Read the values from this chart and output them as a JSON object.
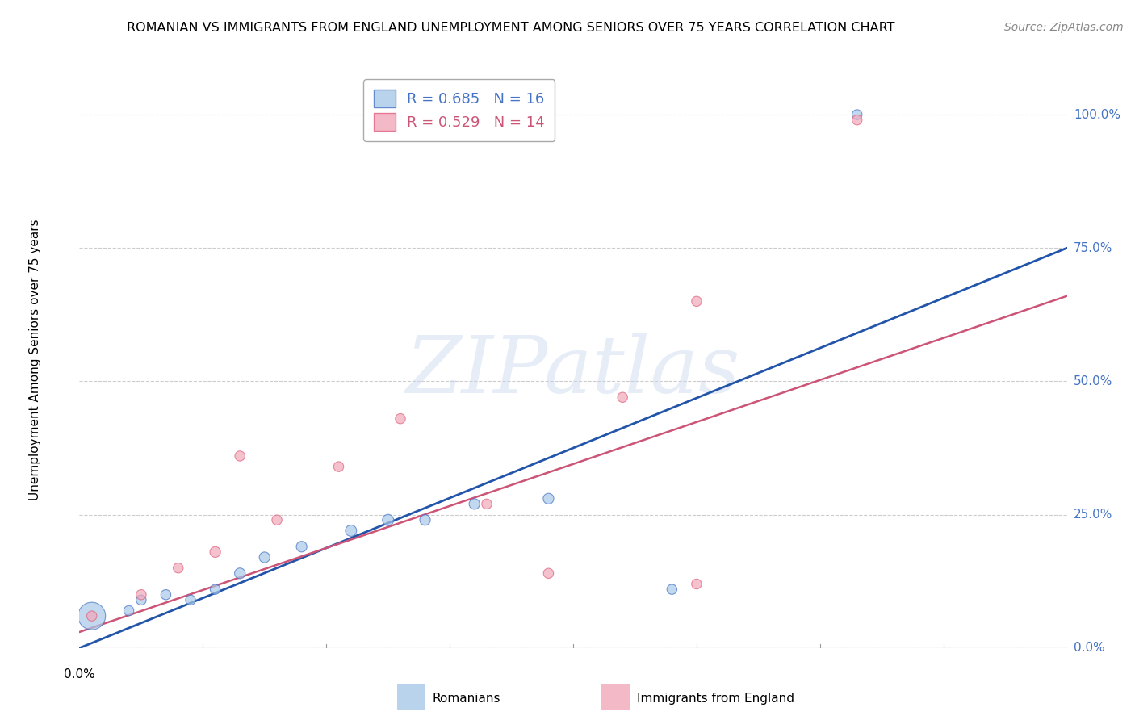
{
  "title": "ROMANIAN VS IMMIGRANTS FROM ENGLAND UNEMPLOYMENT AMONG SENIORS OVER 75 YEARS CORRELATION CHART",
  "source": "Source: ZipAtlas.com",
  "ylabel": "Unemployment Among Seniors over 75 years",
  "ytick_labels": [
    "100.0%",
    "75.0%",
    "50.0%",
    "25.0%",
    "0.0%"
  ],
  "ytick_values": [
    1.0,
    0.75,
    0.5,
    0.25,
    0.0
  ],
  "xmin": 0.0,
  "xmax": 0.08,
  "ymin": 0.0,
  "ymax": 1.08,
  "watermark_text": "ZIPatlas",
  "legend_line1": "R = 0.685   N = 16",
  "legend_line2": "R = 0.529   N = 14",
  "series1_name": "Romanians",
  "series2_name": "Immigrants from England",
  "series1_color": "#a8c8e8",
  "series2_color": "#f0a8b8",
  "series1_edge_color": "#4472c4",
  "series2_edge_color": "#e06080",
  "series1_line_color": "#2255aa",
  "series2_line_color": "#cc5577",
  "romanians_x": [
    0.001,
    0.004,
    0.005,
    0.007,
    0.009,
    0.011,
    0.013,
    0.015,
    0.018,
    0.022,
    0.025,
    0.028,
    0.032,
    0.038,
    0.048,
    0.063
  ],
  "romanians_y": [
    0.06,
    0.07,
    0.09,
    0.1,
    0.09,
    0.11,
    0.14,
    0.17,
    0.19,
    0.22,
    0.24,
    0.24,
    0.27,
    0.28,
    0.11,
    1.0
  ],
  "romanians_size": [
    600,
    80,
    80,
    80,
    80,
    80,
    90,
    90,
    90,
    100,
    100,
    90,
    90,
    90,
    80,
    80
  ],
  "england_x": [
    0.001,
    0.005,
    0.008,
    0.011,
    0.013,
    0.016,
    0.021,
    0.026,
    0.033,
    0.038,
    0.044,
    0.05,
    0.063,
    0.05
  ],
  "england_y": [
    0.06,
    0.1,
    0.15,
    0.18,
    0.36,
    0.24,
    0.34,
    0.43,
    0.27,
    0.14,
    0.47,
    0.12,
    0.99,
    0.65
  ],
  "england_size": [
    80,
    80,
    80,
    90,
    80,
    80,
    80,
    80,
    80,
    80,
    80,
    80,
    80,
    80
  ],
  "trendline1_x": [
    0.0,
    0.08
  ],
  "trendline1_y": [
    0.0,
    0.75
  ],
  "trendline2_x": [
    0.0,
    0.08
  ],
  "trendline2_y": [
    0.03,
    0.66
  ]
}
